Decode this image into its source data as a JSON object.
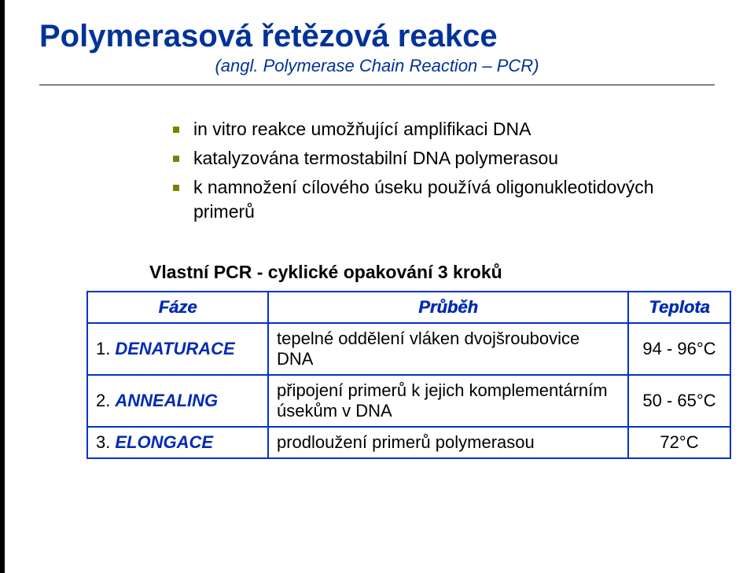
{
  "title": "Polymerasová řetězová reakce",
  "subtitle": "(angl. Polymerase Chain Reaction – PCR)",
  "bullets": [
    "in vitro reakce umožňující amplifikaci DNA",
    "katalyzována termostabilní DNA polymerasou",
    "k namnožení cílového úseku používá oligonukleotidových primerů"
  ],
  "section_heading": "Vlastní PCR - cyklické opakování 3 kroků",
  "table": {
    "headers": {
      "phase": "Fáze",
      "process": "Průběh",
      "temp": "Teplota"
    },
    "rows": [
      {
        "num": "1.",
        "phase": "DENATURACE",
        "process": "tepelné oddělení vláken dvojšroubovice DNA",
        "temp": "94 - 96°C"
      },
      {
        "num": "2.",
        "phase": "ANNEALING",
        "process": "připojení primerů k jejich komplementárním úsekům v DNA",
        "temp": "50 - 65°C"
      },
      {
        "num": "3.",
        "phase": "ELONGACE",
        "process": "prodloužení primerů polymerasou",
        "temp": "72°C"
      }
    ]
  },
  "colors": {
    "title": "#003399",
    "bullet": "#808000",
    "table_border": "#0033cc",
    "table_header_text": "#002bb1",
    "hr": "#7f7f7f"
  }
}
